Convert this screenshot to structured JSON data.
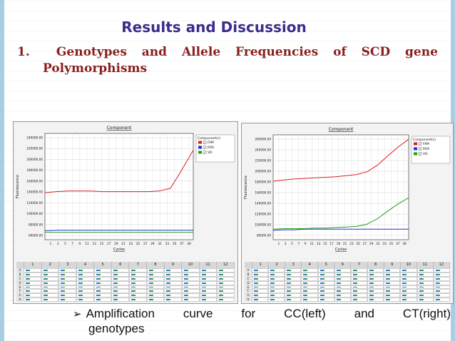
{
  "slide": {
    "title": "Results and Discussion",
    "heading_number": "1.",
    "heading_words": [
      "Genotypes",
      "and",
      "Allele",
      "Frequencies",
      "of",
      "SCD",
      "gene"
    ],
    "heading_line2": "Polymorphisms",
    "caption_words": [
      "Amplification",
      "curve",
      "for",
      "CC(left)",
      "and",
      "CT(right)"
    ],
    "caption_line2": "genotypes"
  },
  "left_panel": {
    "chart_title": "Component",
    "ylabel": "Fluorescence",
    "xlabel": "Cycles",
    "legend_title": "Component(s)",
    "legend": [
      {
        "name": "FAM",
        "color": "#d62020"
      },
      {
        "name": "ROX",
        "color": "#2030d0"
      },
      {
        "name": "VIC",
        "color": "#20a020"
      }
    ],
    "ytick_labels": [
      "240000.00",
      "220000.00",
      "200000.00",
      "180000.00",
      "160000.00",
      "140000.00",
      "120000.00",
      "100000.00",
      "80000.00",
      "60000.00"
    ],
    "xtick_labels": [
      "1",
      "3",
      "5",
      "7",
      "9",
      "11",
      "13",
      "15",
      "17",
      "19",
      "21",
      "23",
      "25",
      "27",
      "29",
      "31",
      "33",
      "35",
      "37",
      "39"
    ],
    "plate_columns": [
      "1",
      "2",
      "3",
      "4",
      "5",
      "6",
      "7",
      "8",
      "9",
      "10",
      "11",
      "12"
    ],
    "plate_rows": [
      "A",
      "B",
      "C",
      "D",
      "E",
      "F",
      "G",
      "H"
    ]
  },
  "right_panel": {
    "chart_title": "Component",
    "ylabel": "Fluorescence",
    "xlabel": "Cycles",
    "legend_title": "Component(s)",
    "legend": [
      {
        "name": "FAM",
        "color": "#d62020"
      },
      {
        "name": "ROX",
        "color": "#2030d0"
      },
      {
        "name": "VIC",
        "color": "#20a020"
      }
    ],
    "ytick_labels": [
      "260000.00",
      "240000.00",
      "220000.00",
      "200000.00",
      "180000.00",
      "160000.00",
      "140000.00",
      "120000.00",
      "100000.00",
      "80000.00"
    ],
    "xtick_labels": [
      "1",
      "3",
      "5",
      "7",
      "9",
      "11",
      "13",
      "15",
      "17",
      "19",
      "21",
      "23",
      "25",
      "27",
      "29",
      "31",
      "33",
      "35",
      "37",
      "39"
    ],
    "plate_columns": [
      "1",
      "2",
      "3",
      "4",
      "5",
      "6",
      "7",
      "8",
      "9",
      "10",
      "11",
      "12"
    ],
    "plate_rows": [
      "A",
      "B",
      "C",
      "D",
      "E",
      "F",
      "G",
      "H"
    ]
  },
  "chart_data": [
    {
      "type": "line",
      "title": "Component",
      "xlabel": "Cycles",
      "ylabel": "Fluorescence",
      "xlim": [
        1,
        40
      ],
      "ylim": [
        60000,
        250000
      ],
      "x": [
        1,
        4,
        7,
        10,
        13,
        16,
        19,
        22,
        25,
        28,
        31,
        34,
        37,
        40
      ],
      "series": [
        {
          "name": "FAM",
          "color": "#d62020",
          "values": [
            144000,
            146000,
            147000,
            147000,
            147000,
            146000,
            146000,
            146000,
            146000,
            146000,
            147000,
            152000,
            185000,
            220000
          ]
        },
        {
          "name": "ROX",
          "color": "#2030d0",
          "values": [
            76000,
            77000,
            77000,
            77000,
            77000,
            77000,
            77000,
            77000,
            77000,
            77000,
            77000,
            77000,
            77000,
            77000
          ]
        },
        {
          "name": "VIC",
          "color": "#20a020",
          "values": [
            73000,
            73000,
            73000,
            73000,
            73000,
            73000,
            73000,
            73000,
            73000,
            73000,
            73000,
            73000,
            73000,
            73000
          ]
        }
      ],
      "legend_placement": "right",
      "grid": true
    },
    {
      "type": "line",
      "title": "Component",
      "xlabel": "Cycles",
      "ylabel": "Fluorescence",
      "xlim": [
        1,
        40
      ],
      "ylim": [
        80000,
        270000
      ],
      "x": [
        1,
        4,
        7,
        10,
        13,
        16,
        19,
        22,
        25,
        28,
        31,
        34,
        37,
        40
      ],
      "series": [
        {
          "name": "FAM",
          "color": "#d62020",
          "values": [
            186000,
            188000,
            190000,
            191000,
            192000,
            193000,
            194000,
            196000,
            198000,
            203000,
            215000,
            232000,
            248000,
            262000
          ]
        },
        {
          "name": "ROX",
          "color": "#2030d0",
          "values": [
            97000,
            98000,
            98000,
            99000,
            99000,
            99000,
            99000,
            99000,
            99000,
            99000,
            99000,
            99000,
            99000,
            99000
          ]
        },
        {
          "name": "VIC",
          "color": "#20a020",
          "values": [
            99000,
            100000,
            100000,
            100000,
            101000,
            101000,
            102000,
            103000,
            104000,
            108000,
            118000,
            132000,
            145000,
            156000
          ]
        }
      ],
      "legend_placement": "right",
      "grid": true
    }
  ]
}
